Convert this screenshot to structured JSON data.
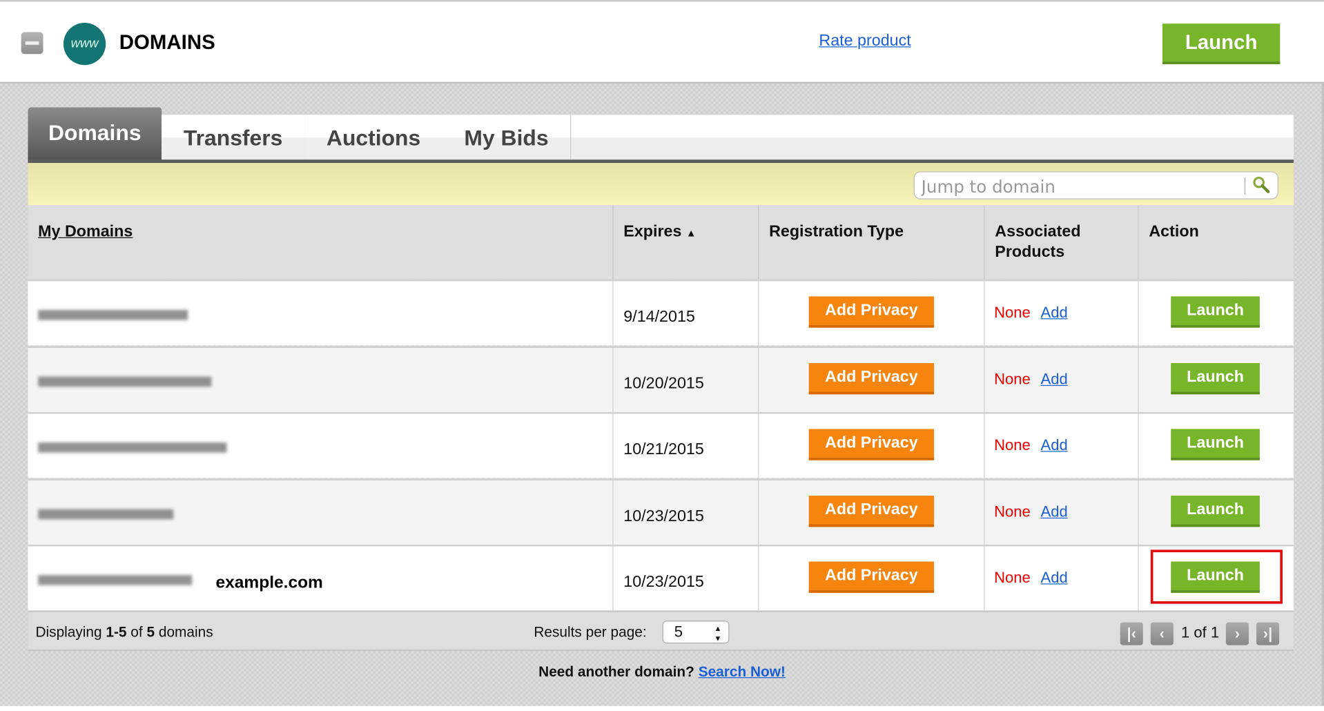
{
  "header": {
    "title": "DOMAINS",
    "logo_text": "www",
    "rate_link": "Rate product",
    "launch": "Launch"
  },
  "tabs": [
    {
      "label": "Domains",
      "active": true
    },
    {
      "label": "Transfers"
    },
    {
      "label": "Auctions"
    },
    {
      "label": "My Bids"
    }
  ],
  "search": {
    "placeholder": "Jump to domain",
    "icon": "search-icon"
  },
  "table": {
    "columns": [
      "My Domains",
      "Expires",
      "Registration Type",
      "Associated Products",
      "Action"
    ],
    "sort_indicator": "▲",
    "rows": [
      {
        "expires": "9/14/2015",
        "privacy": "Add Privacy",
        "products": "None",
        "add": "Add",
        "action": "Launch"
      },
      {
        "expires": "10/20/2015",
        "privacy": "Add Privacy",
        "products": "None",
        "add": "Add",
        "action": "Launch"
      },
      {
        "expires": "10/21/2015",
        "privacy": "Add Privacy",
        "products": "None",
        "add": "Add",
        "action": "Launch"
      },
      {
        "expires": "10/23/2015",
        "privacy": "Add Privacy",
        "products": "None",
        "add": "Add",
        "action": "Launch"
      },
      {
        "expires": "10/23/2015",
        "privacy": "Add Privacy",
        "products": "None",
        "add": "Add",
        "action": "Launch",
        "annotation": "example.com"
      }
    ]
  },
  "footer": {
    "displaying_prefix": "Displaying ",
    "range": "1-5",
    "of": " of ",
    "total": "5",
    "suffix": " domains",
    "results_label": "Results per page:",
    "results_value": "5",
    "page_text": "1 of 1"
  },
  "bottom": {
    "question": "Need another domain? ",
    "link": "Search Now!"
  },
  "colors": {
    "launch": "#77b52a",
    "privacy": "#f6850f",
    "none": "#e00000",
    "link": "#1a5fd6",
    "highlight": "#e01010"
  }
}
